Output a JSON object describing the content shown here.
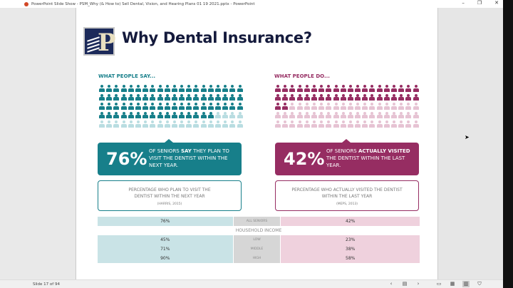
{
  "window": {
    "title": "PowerPoint Slide Show  -  PSM_Why (& How to) Sell Dental, Vision, and Hearing Plans 01 19 2021.pptx  -  PowerPoint",
    "minimize": "–",
    "restore": "❐",
    "close": "✕"
  },
  "slide": {
    "title": "Why Dental Insurance?",
    "logo_letter": "P",
    "say": {
      "header": "WHAT PEOPLE SAY...",
      "filled": 76,
      "total": 100,
      "percent": "76%",
      "text_a": "OF SENIORS ",
      "text_bold": "SAY",
      "text_b": " THEY PLAN TO VISIT THE DENTIST WITHIN THE NEXT YEAR.",
      "note": "PERCENTAGE WHO PLAN TO VISIT THE DENTIST WITHIN THE NEXT YEAR",
      "source": "(HARRIS, 2015)"
    },
    "do": {
      "header": "WHAT PEOPLE DO...",
      "filled": 42,
      "total": 100,
      "percent": "42%",
      "text_a": "OF SENIORS ",
      "text_bold": "ACTUALLY VISITED",
      "text_b": " THE DENTIST WITHIN THE LAST YEAR.",
      "note": "PERCENTAGE WHO ACTUALLY VISITED THE DENTIST WITHIN THE LAST YEAR",
      "source": "(MEPS, 2013)"
    },
    "table": {
      "all": {
        "label": "ALL SENIORS",
        "say": "76%",
        "do": "42%"
      },
      "income_header": "HOUSEHOLD INCOME",
      "rows": [
        {
          "label": "LOW",
          "say": "45%",
          "do": "23%"
        },
        {
          "label": "MIDDLE",
          "say": "71%",
          "do": "38%"
        },
        {
          "label": "HIGH",
          "say": "90%",
          "do": "58%"
        }
      ]
    }
  },
  "colors": {
    "teal": "#177f8a",
    "teal_light": "#b9dde1",
    "magenta": "#962d62",
    "magenta_light": "#e6c3d3"
  },
  "status": {
    "slide_label": "Slide 17 of 94",
    "prev": "‹",
    "notes": "▤",
    "next": "›",
    "normal": "▭",
    "sorter": "▦",
    "reading": "▥",
    "show": "⛉"
  }
}
